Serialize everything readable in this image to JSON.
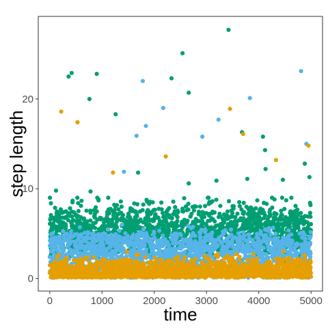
{
  "chart_data": {
    "type": "scatter",
    "title": "",
    "xlabel": "time",
    "ylabel": "step length",
    "xlim": [
      -220,
      5220
    ],
    "ylim": [
      -1.4,
      29.2
    ],
    "x_ticks": [
      0,
      1000,
      2000,
      3000,
      4000,
      5000
    ],
    "y_ticks": [
      0,
      10,
      20
    ],
    "grid": false,
    "legend": "none",
    "colors": {
      "state_1": "#E69F00",
      "state_2": "#56B4E9",
      "state_3": "#009E73",
      "panel_border": "#333333"
    },
    "series": [
      {
        "key": "state_1",
        "x_range": [
          0,
          5000
        ],
        "band_range": [
          0,
          3
        ],
        "approx_count": 1700,
        "outliers": [
          {
            "x": 220,
            "y": 18.6
          },
          {
            "x": 530,
            "y": 17.4
          },
          {
            "x": 1210,
            "y": 11.8
          },
          {
            "x": 2220,
            "y": 13.6
          },
          {
            "x": 3450,
            "y": 18.9
          },
          {
            "x": 3700,
            "y": 16.1
          },
          {
            "x": 4330,
            "y": 13.2
          },
          {
            "x": 4950,
            "y": 14.8
          }
        ]
      },
      {
        "key": "state_2",
        "x_range": [
          0,
          5000
        ],
        "band_range": [
          0.5,
          6
        ],
        "approx_count": 1600,
        "outliers": [
          {
            "x": 1420,
            "y": 11.9
          },
          {
            "x": 1660,
            "y": 15.9
          },
          {
            "x": 1780,
            "y": 22.0
          },
          {
            "x": 1840,
            "y": 17.0
          },
          {
            "x": 2170,
            "y": 19.0
          },
          {
            "x": 2920,
            "y": 15.8
          },
          {
            "x": 3230,
            "y": 17.7
          },
          {
            "x": 3830,
            "y": 20.1
          },
          {
            "x": 4810,
            "y": 23.1
          },
          {
            "x": 4910,
            "y": 15.0
          }
        ]
      },
      {
        "key": "state_3",
        "x_range": [
          0,
          5000
        ],
        "band_range": [
          2,
          9
        ],
        "approx_count": 1700,
        "outliers": [
          {
            "x": 360,
            "y": 22.5
          },
          {
            "x": 420,
            "y": 22.9
          },
          {
            "x": 760,
            "y": 20.0
          },
          {
            "x": 900,
            "y": 22.8
          },
          {
            "x": 1260,
            "y": 18.3
          },
          {
            "x": 2330,
            "y": 22.3
          },
          {
            "x": 2540,
            "y": 25.1
          },
          {
            "x": 2660,
            "y": 20.7
          },
          {
            "x": 3420,
            "y": 27.7
          },
          {
            "x": 3680,
            "y": 16.3
          },
          {
            "x": 4080,
            "y": 15.8
          },
          {
            "x": 4120,
            "y": 14.3
          },
          {
            "x": 4130,
            "y": 12.2
          },
          {
            "x": 4880,
            "y": 12.8
          },
          {
            "x": 4970,
            "y": 11.3
          },
          {
            "x": 1690,
            "y": 11.8
          },
          {
            "x": 2660,
            "y": 10.6
          },
          {
            "x": 3190,
            "y": 10.9
          },
          {
            "x": 3780,
            "y": 11.1
          },
          {
            "x": 4460,
            "y": 11.0
          },
          {
            "x": 120,
            "y": 9.8
          },
          {
            "x": 780,
            "y": 9.7
          }
        ]
      }
    ]
  }
}
